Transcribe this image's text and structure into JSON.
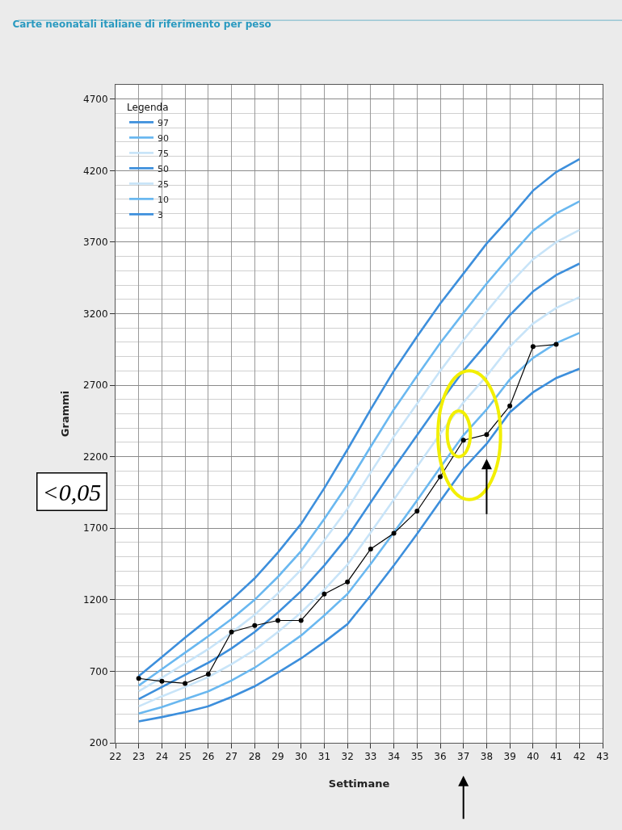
{
  "chart_data": {
    "type": "line",
    "title": "Carte neonatali italiane di riferimento per peso",
    "xlabel": "Settimane",
    "ylabel": "Grammi",
    "legend_title": "Legenda",
    "legend": "top left",
    "grid": true,
    "x": [
      23,
      24,
      25,
      26,
      27,
      28,
      29,
      30,
      31,
      32,
      33,
      34,
      35,
      36,
      37,
      38,
      39,
      40,
      41,
      42
    ],
    "xlim": [
      22,
      43
    ],
    "xticks": [
      22,
      23,
      24,
      25,
      26,
      27,
      28,
      29,
      30,
      31,
      32,
      33,
      34,
      35,
      36,
      37,
      38,
      39,
      40,
      41,
      42,
      43
    ],
    "ylim": [
      200,
      4800
    ],
    "yticks": [
      200,
      700,
      1200,
      1700,
      2200,
      2700,
      3200,
      3700,
      4200,
      4700
    ],
    "annotations": [
      "<0,05"
    ],
    "series": [
      {
        "name": "97",
        "color": "#3d8fdc",
        "marker": "none",
        "values": [
          665,
          800,
          935,
          1065,
          1200,
          1350,
          1530,
          1730,
          1980,
          2250,
          2530,
          2800,
          3040,
          3270,
          3480,
          3690,
          3870,
          4060,
          4190,
          4280
        ]
      },
      {
        "name": "90",
        "color": "#6ab8f0",
        "marker": "none",
        "values": [
          600,
          715,
          830,
          945,
          1065,
          1200,
          1360,
          1540,
          1765,
          2005,
          2270,
          2530,
          2765,
          2995,
          3205,
          3410,
          3600,
          3780,
          3900,
          3985
        ]
      },
      {
        "name": "75",
        "color": "#c8e4f8",
        "marker": "none",
        "values": [
          560,
          655,
          755,
          855,
          970,
          1095,
          1245,
          1410,
          1615,
          1835,
          2090,
          2340,
          2570,
          2800,
          3015,
          3215,
          3410,
          3580,
          3700,
          3785
        ]
      },
      {
        "name": "50",
        "color": "#3d8fdc",
        "marker": "none",
        "values": [
          505,
          590,
          675,
          760,
          860,
          975,
          1110,
          1260,
          1440,
          1640,
          1880,
          2120,
          2350,
          2580,
          2800,
          2990,
          3190,
          3355,
          3470,
          3550
        ]
      },
      {
        "name": "25",
        "color": "#c8e4f8",
        "marker": "none",
        "values": [
          455,
          525,
          590,
          660,
          750,
          850,
          975,
          1110,
          1270,
          1445,
          1670,
          1900,
          2130,
          2360,
          2580,
          2765,
          2970,
          3130,
          3240,
          3315
        ]
      },
      {
        "name": "10",
        "color": "#6ab8f0",
        "marker": "none",
        "values": [
          405,
          450,
          505,
          560,
          635,
          725,
          835,
          950,
          1090,
          1240,
          1450,
          1670,
          1895,
          2125,
          2350,
          2530,
          2740,
          2890,
          2995,
          3065
        ]
      },
      {
        "name": "3",
        "color": "#3d8fdc",
        "marker": "none",
        "values": [
          350,
          380,
          415,
          455,
          520,
          595,
          690,
          790,
          905,
          1030,
          1230,
          1440,
          1660,
          1890,
          2115,
          2290,
          2510,
          2650,
          2750,
          2815
        ]
      },
      {
        "color": "#000000",
        "marker": "circle",
        "x": [
          23,
          24,
          25,
          26,
          27,
          28,
          29,
          30,
          31,
          32,
          33,
          34,
          35,
          36,
          37,
          38,
          39,
          40,
          41
        ],
        "values": [
          650,
          630,
          615,
          680,
          975,
          1020,
          1055,
          1055,
          1240,
          1325,
          1555,
          1665,
          1820,
          2060,
          2315,
          2355,
          2555,
          2970,
          2985
        ]
      }
    ]
  }
}
